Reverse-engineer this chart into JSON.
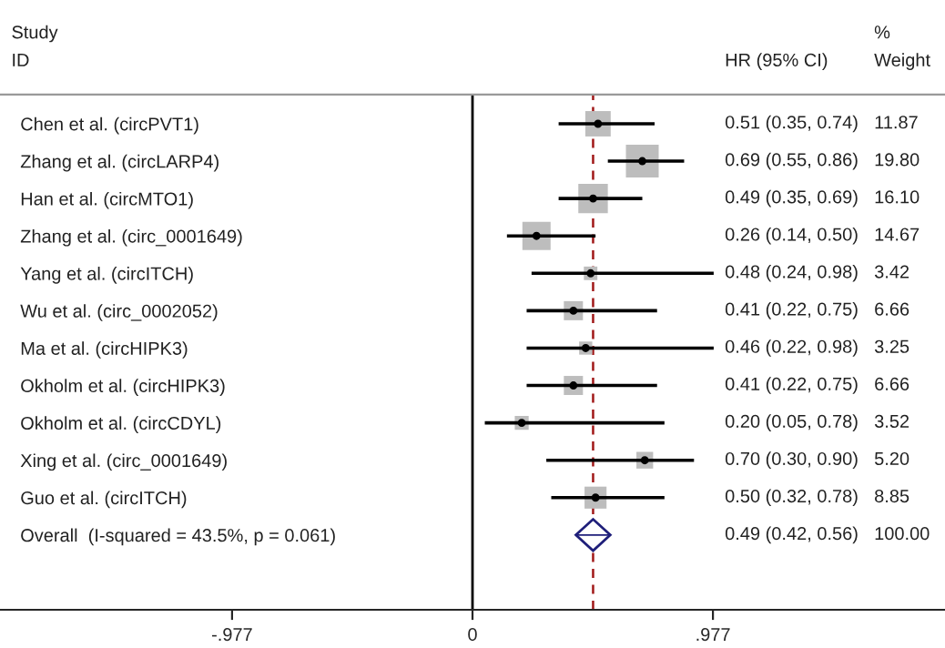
{
  "chart_data": {
    "type": "scatter",
    "orientation": "horizontal",
    "categories": [
      "Chen et al. (circPVT1)",
      "Zhang et al. (circLARP4)",
      "Han et al. (circMTO1)",
      "Zhang et al. (circ_0001649)",
      "Yang et al. (circITCH)",
      "Wu et al. (circ_0002052)",
      "Ma et al. (circHIPK3)",
      "Okholm et al. (circHIPK3)",
      "Okholm et al. (circCDYL)",
      "Xing et al. (circ_0001649)",
      "Guo et al. (circITCH)",
      "Overall  (I-squared = 43.5%, p = 0.061)"
    ],
    "series": [
      {
        "type": "bubble",
        "marker": "square",
        "color": "#bdbdbd",
        "values": [
          0.51,
          0.69,
          0.49,
          0.26,
          0.48,
          0.41,
          0.46,
          0.41,
          0.2,
          0.7,
          0.5,
          null
        ],
        "errors": [
          [
            0.35,
            0.74
          ],
          [
            0.55,
            0.86
          ],
          [
            0.35,
            0.69
          ],
          [
            0.14,
            0.5
          ],
          [
            0.24,
            0.98
          ],
          [
            0.22,
            0.75
          ],
          [
            0.22,
            0.98
          ],
          [
            0.22,
            0.75
          ],
          [
            0.05,
            0.78
          ],
          [
            0.3,
            0.9
          ],
          [
            0.32,
            0.78
          ],
          null
        ],
        "sizes": [
          0.6,
          1,
          0.81,
          0.74,
          0.17,
          0.34,
          0.16,
          0.34,
          0.18,
          0.26,
          0.45,
          null
        ]
      },
      {
        "type": "scatter",
        "marker": "diamond",
        "color": "#1f1f7a",
        "values": [
          null,
          null,
          null,
          null,
          null,
          null,
          null,
          null,
          null,
          null,
          null,
          0.49
        ],
        "errors": [
          null,
          null,
          null,
          null,
          null,
          null,
          null,
          null,
          null,
          null,
          null,
          [
            0.42,
            0.56
          ]
        ]
      }
    ],
    "xlim": [
      -1.92,
      1.92
    ],
    "xticks": [
      {
        "value": -0.977,
        "label": "-.977"
      },
      0,
      {
        "value": 0.977,
        "label": ".977"
      }
    ],
    "ref_lines": [
      {
        "axis": "x",
        "value": 0,
        "color": "#000000",
        "line_style": "solid"
      },
      {
        "axis": "x",
        "value": 0.49,
        "color": "#a01818",
        "line_style": "dashed"
      }
    ],
    "annotations": [
      "Study",
      "ID",
      "HR (95% CI)",
      "%",
      "Weight",
      "11.87",
      "19.80",
      "16.10",
      "14.67",
      "3.42",
      "6.66",
      "3.25",
      "6.66",
      "3.52",
      "5.20",
      "8.85",
      "100.00",
      "0.51 (0.35, 0.74)",
      "0.69 (0.55, 0.86)",
      "0.49 (0.35, 0.69)",
      "0.26 (0.14, 0.50)",
      "0.48 (0.24, 0.98)",
      "0.41 (0.22, 0.75)",
      "0.46 (0.22, 0.98)",
      "0.41 (0.22, 0.75)",
      "0.20 (0.05, 0.78)",
      "0.70 (0.30, 0.90)",
      "0.50 (0.32, 0.78)",
      "0.49 (0.42, 0.56)"
    ],
    "grid": false
  }
}
